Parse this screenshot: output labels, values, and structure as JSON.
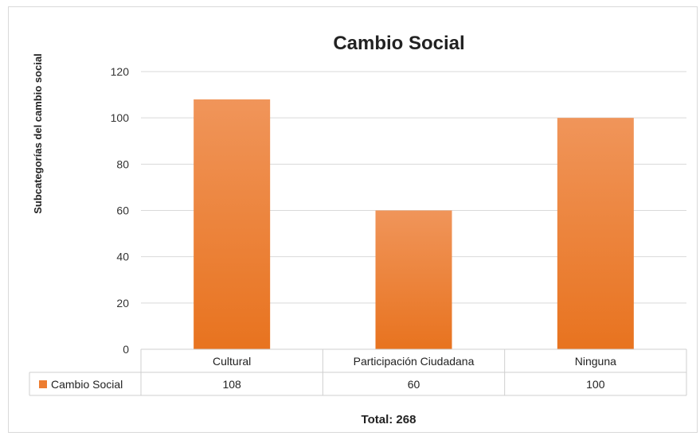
{
  "chart_data": {
    "type": "bar",
    "title": "Cambio Social",
    "ylabel": "Subcategorías del cambio social",
    "xlabel": "",
    "categories": [
      "Cultural",
      "Participación Ciudadana",
      "Ninguna"
    ],
    "series": [
      {
        "name": "Cambio Social",
        "values": [
          108,
          60,
          100
        ]
      }
    ],
    "ylim": [
      0,
      120
    ],
    "yticks": [
      0,
      20,
      40,
      60,
      80,
      100,
      120
    ],
    "grid": true,
    "legend": "data-table",
    "colors": {
      "bar": "#ED7D31",
      "bar_light": "#F0955A",
      "bar_dark": "#E8731F",
      "grid": "#d9d9d9"
    }
  },
  "footer": {
    "total": "Total: 268"
  }
}
